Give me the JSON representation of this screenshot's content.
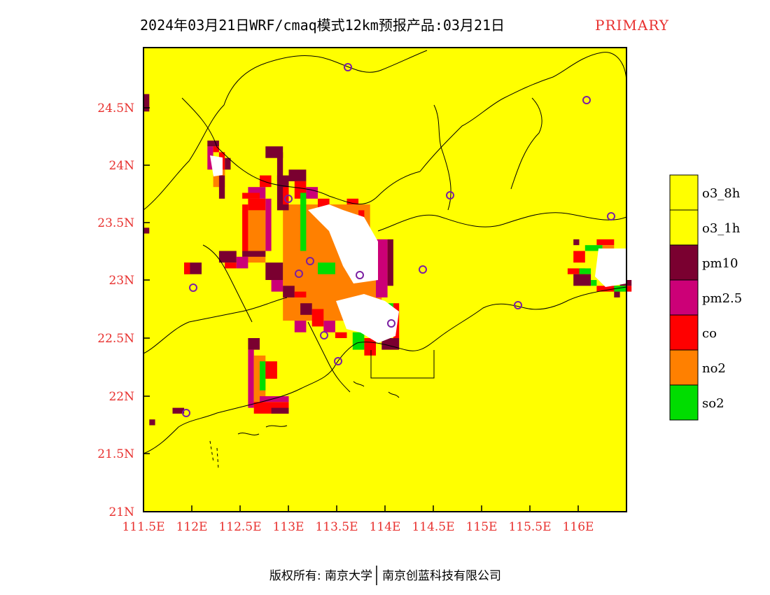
{
  "header": {
    "title": "2024年03月21日WRF/cmaq模式12km预报产品:03月21日",
    "tag": "PRIMARY"
  },
  "axes": {
    "x_ticks": [
      "111.5E",
      "112E",
      "112.5E",
      "113E",
      "113.5E",
      "114E",
      "114.5E",
      "115E",
      "115.5E",
      "116E"
    ],
    "y_ticks": [
      "21N",
      "21.5N",
      "22N",
      "22.5N",
      "23N",
      "23.5N",
      "24N",
      "24.5N"
    ]
  },
  "legend": {
    "items": [
      {
        "label": "o3_8h",
        "color": "#ffff00"
      },
      {
        "label": "o3_1h",
        "color": "#ffff00"
      },
      {
        "label": "pm10",
        "color": "#7a0030"
      },
      {
        "label": "pm2.5",
        "color": "#cc0077"
      },
      {
        "label": "co",
        "color": "#ff0000"
      },
      {
        "label": "no2",
        "color": "#ff8000"
      },
      {
        "label": "so2",
        "color": "#00dd00"
      }
    ]
  },
  "footer": {
    "left": "版权所有: 南京大学",
    "right": "南京创蓝科技有限公司"
  },
  "colors": {
    "background_field": "#ffffff",
    "o3": "#ffff00",
    "pm10": "#7a0030",
    "pm25": "#cc0077",
    "co": "#ff0000",
    "no2": "#ff8000",
    "so2": "#00dd00",
    "axis_label": "#e8312f",
    "station_marker": "#7b1fa2"
  }
}
